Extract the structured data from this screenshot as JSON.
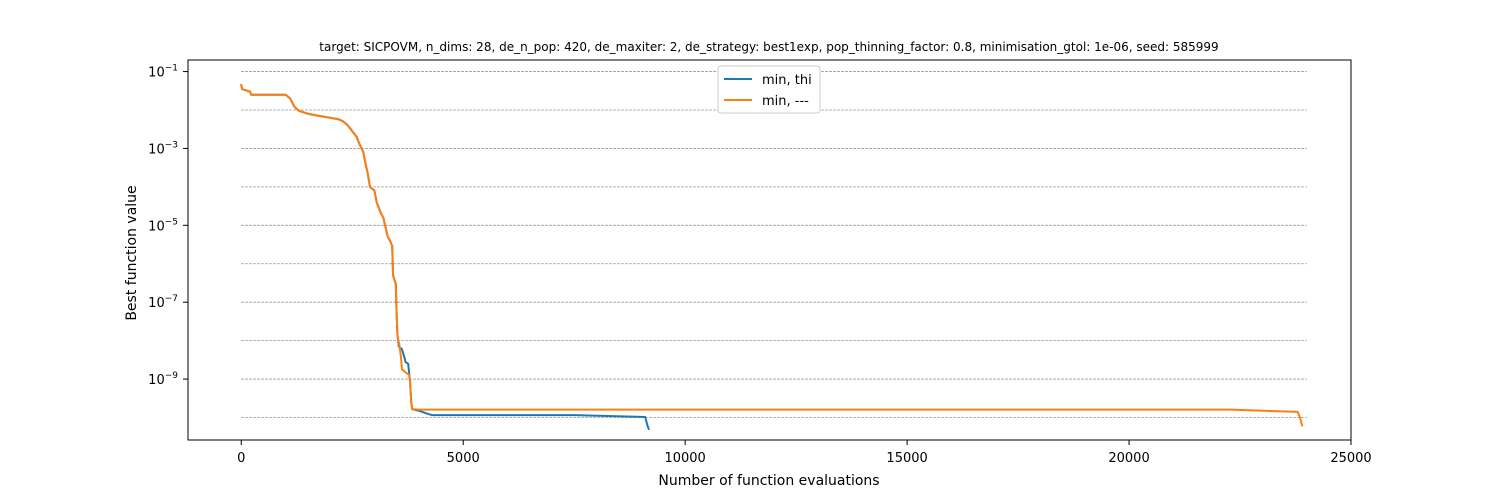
{
  "chart_data": {
    "type": "line",
    "title": "target: SICPOVM, n_dims: 28, de_n_pop: 420, de_maxiter: 2, de_strategy: best1exp, pop_thinning_factor: 0.8, minimisation_gtol: 1e-06, seed: 585999",
    "xlabel": "Number of function evaluations",
    "ylabel": "Best function value",
    "xlim": [
      -1200,
      25000
    ],
    "ylim": [
      2.6e-11,
      0.2
    ],
    "yscale": "log",
    "xticks": [
      0,
      5000,
      10000,
      15000,
      20000,
      25000
    ],
    "xtick_labels": [
      "0",
      "5000",
      "10000",
      "15000",
      "20000",
      "25000"
    ],
    "yticks": [
      1e-09,
      1e-07,
      1e-05,
      0.001,
      0.1
    ],
    "ytick_labels": [
      {
        "base": "10",
        "exp": "−9"
      },
      {
        "base": "10",
        "exp": "−7"
      },
      {
        "base": "10",
        "exp": "−5"
      },
      {
        "base": "10",
        "exp": "−3"
      },
      {
        "base": "10",
        "exp": "−1"
      }
    ],
    "grid": "horizontal dashed at each decade",
    "grid_lines": [
      1e-10,
      1e-09,
      1e-08,
      1e-07,
      1e-06,
      1e-05,
      0.0001,
      0.001,
      0.01,
      0.1
    ],
    "legend_position": "top-center",
    "series": [
      {
        "name": "min, thi",
        "color": "#1f77b4",
        "points": [
          [
            0,
            0.045
          ],
          [
            20,
            0.035
          ],
          [
            200,
            0.03
          ],
          [
            220,
            0.025
          ],
          [
            1000,
            0.025
          ],
          [
            1100,
            0.02
          ],
          [
            1200,
            0.012
          ],
          [
            1300,
            0.0095
          ],
          [
            1500,
            0.008
          ],
          [
            1700,
            0.0072
          ],
          [
            2000,
            0.0063
          ],
          [
            2200,
            0.0057
          ],
          [
            2300,
            0.005
          ],
          [
            2400,
            0.004
          ],
          [
            2500,
            0.0028
          ],
          [
            2600,
            0.002
          ],
          [
            2650,
            0.0014
          ],
          [
            2750,
            0.0008
          ],
          [
            2800,
            0.0004
          ],
          [
            2850,
            0.00022
          ],
          [
            2900,
            0.0001
          ],
          [
            3000,
            8e-05
          ],
          [
            3050,
            4e-05
          ],
          [
            3150,
            2e-05
          ],
          [
            3200,
            1.6e-05
          ],
          [
            3300,
            5e-06
          ],
          [
            3350,
            4e-06
          ],
          [
            3400,
            2.9e-06
          ],
          [
            3420,
            5e-07
          ],
          [
            3480,
            3e-07
          ],
          [
            3500,
            5e-08
          ],
          [
            3520,
            1.3e-08
          ],
          [
            3540,
            9e-09
          ],
          [
            3550,
            7e-09
          ],
          [
            3620,
            6e-09
          ],
          [
            3680,
            3.5e-09
          ],
          [
            3700,
            2.8e-09
          ],
          [
            3760,
            2.5e-09
          ],
          [
            3780,
            1.5e-09
          ],
          [
            3800,
            9e-10
          ],
          [
            3830,
            2.5e-10
          ],
          [
            3850,
            1.65e-10
          ],
          [
            4000,
            1.5e-10
          ],
          [
            4200,
            1.25e-10
          ],
          [
            4300,
            1.15e-10
          ],
          [
            7500,
            1.15e-10
          ],
          [
            9100,
            1.03e-10
          ],
          [
            9150,
            6.2e-11
          ],
          [
            9180,
            5e-11
          ]
        ]
      },
      {
        "name": "min, ---",
        "color": "#ff7f0e",
        "points": [
          [
            0,
            0.045
          ],
          [
            20,
            0.035
          ],
          [
            200,
            0.03
          ],
          [
            220,
            0.025
          ],
          [
            1000,
            0.025
          ],
          [
            1100,
            0.02
          ],
          [
            1200,
            0.012
          ],
          [
            1300,
            0.0095
          ],
          [
            1500,
            0.008
          ],
          [
            1700,
            0.0072
          ],
          [
            2000,
            0.0063
          ],
          [
            2200,
            0.0057
          ],
          [
            2300,
            0.005
          ],
          [
            2400,
            0.004
          ],
          [
            2500,
            0.0028
          ],
          [
            2600,
            0.002
          ],
          [
            2650,
            0.0014
          ],
          [
            2750,
            0.0008
          ],
          [
            2800,
            0.0004
          ],
          [
            2850,
            0.00022
          ],
          [
            2900,
            0.0001
          ],
          [
            3000,
            8e-05
          ],
          [
            3050,
            4e-05
          ],
          [
            3150,
            2e-05
          ],
          [
            3200,
            1.6e-05
          ],
          [
            3300,
            5e-06
          ],
          [
            3350,
            4e-06
          ],
          [
            3400,
            2.9e-06
          ],
          [
            3420,
            5e-07
          ],
          [
            3480,
            3e-07
          ],
          [
            3500,
            5e-08
          ],
          [
            3520,
            1.3e-08
          ],
          [
            3560,
            8e-09
          ],
          [
            3600,
            3.5e-09
          ],
          [
            3620,
            1.8e-09
          ],
          [
            3700,
            1.5e-09
          ],
          [
            3780,
            1.3e-09
          ],
          [
            3800,
            9e-10
          ],
          [
            3830,
            2.5e-10
          ],
          [
            3850,
            1.65e-10
          ],
          [
            4000,
            1.6e-10
          ],
          [
            22300,
            1.6e-10
          ],
          [
            23800,
            1.4e-10
          ],
          [
            23850,
            1e-10
          ],
          [
            23900,
            6.2e-11
          ]
        ]
      }
    ]
  }
}
